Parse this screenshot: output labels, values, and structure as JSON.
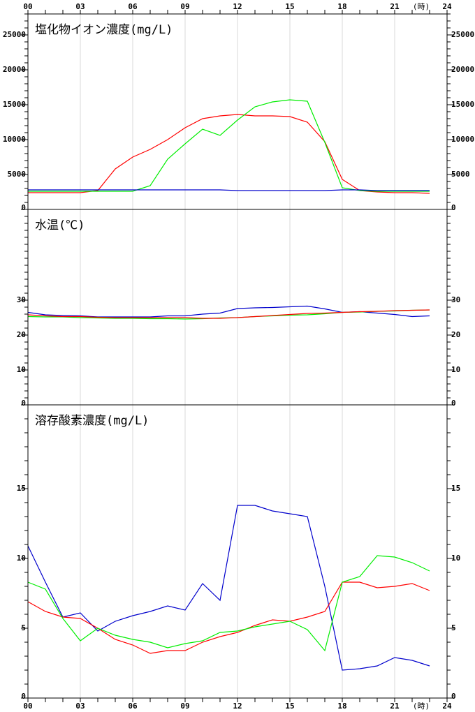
{
  "chart_data": [
    {
      "type": "line",
      "title": "塩化物イオン濃度(mg/L)",
      "xlabel": "(時)",
      "x": [
        0,
        1,
        2,
        3,
        4,
        5,
        6,
        7,
        8,
        9,
        10,
        11,
        12,
        13,
        14,
        15,
        16,
        17,
        18,
        19,
        20,
        21,
        22,
        23
      ],
      "xlim": [
        0,
        24
      ],
      "xticks": [
        {
          "value": 0,
          "label": "00"
        },
        {
          "value": 3,
          "label": "03"
        },
        {
          "value": 6,
          "label": "06"
        },
        {
          "value": 9,
          "label": "09"
        },
        12,
        15,
        18,
        21,
        24
      ],
      "ylim": [
        0,
        28000
      ],
      "yticks": [
        0,
        5000,
        10000,
        15000,
        20000,
        25000
      ],
      "grid": true,
      "series": [
        {
          "color": "#ff0000",
          "values": [
            2400,
            2400,
            2400,
            2400,
            2700,
            5800,
            7500,
            8600,
            10000,
            11700,
            13000,
            13400,
            13600,
            13400,
            13400,
            13300,
            12500,
            9700,
            4300,
            2700,
            2500,
            2400,
            2400,
            2300
          ]
        },
        {
          "color": "#00ee00",
          "values": [
            2600,
            2600,
            2600,
            2600,
            2600,
            2600,
            2600,
            3400,
            7200,
            9400,
            11500,
            10600,
            12800,
            14700,
            15400,
            15700,
            15500,
            9600,
            3100,
            2700,
            2600,
            2600,
            2600,
            2600
          ]
        },
        {
          "color": "#0000cc",
          "values": [
            2800,
            2800,
            2800,
            2800,
            2800,
            2800,
            2800,
            2800,
            2800,
            2800,
            2800,
            2800,
            2700,
            2700,
            2700,
            2700,
            2700,
            2700,
            2800,
            2800,
            2700,
            2700,
            2700,
            2700
          ]
        }
      ]
    },
    {
      "type": "line",
      "title": "水温(℃)",
      "x": [
        0,
        1,
        2,
        3,
        4,
        5,
        6,
        7,
        8,
        9,
        10,
        11,
        12,
        13,
        14,
        15,
        16,
        17,
        18,
        19,
        20,
        21,
        22,
        23
      ],
      "xlim": [
        0,
        24
      ],
      "ylim": [
        0,
        56
      ],
      "yticks": [
        0,
        10,
        20,
        30
      ],
      "grid": true,
      "series": [
        {
          "color": "#0000cc",
          "values": [
            26.5,
            25.8,
            25.6,
            25.5,
            25.2,
            25.2,
            25.2,
            25.2,
            25.5,
            25.5,
            26,
            26.3,
            27.6,
            27.8,
            27.9,
            28.1,
            28.3,
            27.5,
            26.5,
            26.7,
            26.3,
            25.9,
            25.3,
            25.5
          ]
        },
        {
          "color": "#00ee00",
          "values": [
            25.3,
            25.2,
            25.2,
            25,
            24.9,
            24.8,
            24.8,
            24.7,
            24.7,
            24.6,
            24.7,
            24.9,
            25,
            25.3,
            25.5,
            25.7,
            25.8,
            26.1,
            26.5,
            26.6,
            26.8,
            26.9,
            27.1,
            27.2
          ]
        },
        {
          "color": "#ff0000",
          "values": [
            25.8,
            25.5,
            25.3,
            25.3,
            25.1,
            25,
            25,
            25,
            25,
            25,
            24.8,
            24.8,
            25,
            25.3,
            25.6,
            25.9,
            26.2,
            26.3,
            26.5,
            26.7,
            26.8,
            27,
            27.1,
            27.2
          ]
        }
      ]
    },
    {
      "type": "line",
      "title": "溶存酸素濃度(mg/L)",
      "xlabel": "(時)",
      "x": [
        0,
        1,
        2,
        3,
        4,
        5,
        6,
        7,
        8,
        9,
        10,
        11,
        12,
        13,
        14,
        15,
        16,
        17,
        18,
        19,
        20,
        21,
        22,
        23
      ],
      "xlim": [
        0,
        24
      ],
      "xticks": [
        {
          "value": 0,
          "label": "00"
        },
        {
          "value": 3,
          "label": "03"
        },
        {
          "value": 6,
          "label": "06"
        },
        {
          "value": 9,
          "label": "09"
        },
        12,
        15,
        18,
        21,
        24
      ],
      "ylim": [
        0,
        21
      ],
      "yticks": [
        0,
        5,
        10,
        15
      ],
      "grid": true,
      "series": [
        {
          "color": "#0000cc",
          "values": [
            10.9,
            8.3,
            5.8,
            6.1,
            4.8,
            5.5,
            5.9,
            6.2,
            6.6,
            6.3,
            8.2,
            7.0,
            13.8,
            13.8,
            13.4,
            13.2,
            13.0,
            8.0,
            2.0,
            2.1,
            2.3,
            2.9,
            2.7,
            2.3
          ]
        },
        {
          "color": "#ff0000",
          "values": [
            6.9,
            6.2,
            5.8,
            5.7,
            5.0,
            4.2,
            3.8,
            3.2,
            3.4,
            3.4,
            4.0,
            4.4,
            4.7,
            5.2,
            5.6,
            5.5,
            5.8,
            6.2,
            8.3,
            8.3,
            7.9,
            8.0,
            8.2,
            7.7
          ]
        },
        {
          "color": "#00ee00",
          "values": [
            8.3,
            7.8,
            5.7,
            4.1,
            5.0,
            4.5,
            4.2,
            4.0,
            3.6,
            3.9,
            4.1,
            4.7,
            4.8,
            5.1,
            5.3,
            5.5,
            4.9,
            3.4,
            8.3,
            8.7,
            10.2,
            10.1,
            9.7,
            9.1
          ]
        }
      ]
    }
  ]
}
